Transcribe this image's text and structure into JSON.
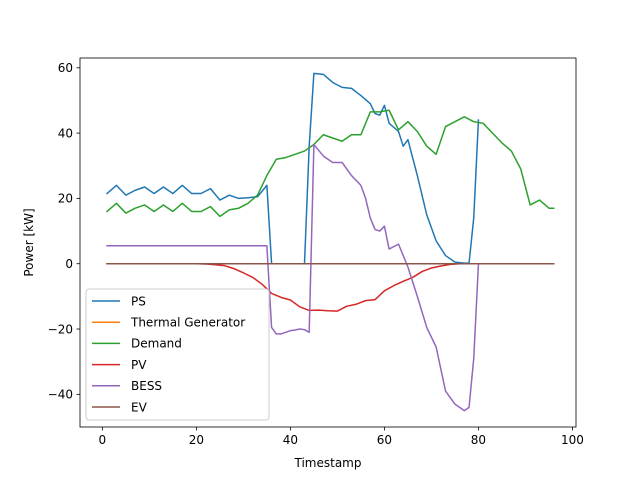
{
  "chart_data": {
    "type": "line",
    "title": "",
    "xlabel": "Timestamp",
    "ylabel": "Power [kW]",
    "xlim": [
      -4.75,
      100.75
    ],
    "ylim": [
      -50,
      63
    ],
    "xticks": [
      0,
      20,
      40,
      60,
      80,
      100
    ],
    "yticks": [
      -40,
      -20,
      0,
      20,
      40,
      60
    ],
    "grid": false,
    "legend_position": "lower-left",
    "series": [
      {
        "name": "PS",
        "color": "#1f77b4",
        "x": [
          1,
          3,
          5,
          7,
          9,
          11,
          13,
          15,
          17,
          19,
          21,
          23,
          25,
          27,
          29,
          31,
          33,
          35,
          36,
          43,
          44,
          45,
          47,
          49,
          51,
          53,
          55,
          57,
          58,
          59,
          60,
          61,
          63,
          64,
          65,
          67,
          69,
          71,
          73,
          75,
          77,
          78,
          79,
          80
        ],
        "y": [
          21.5,
          24,
          21,
          22.5,
          23.5,
          21.5,
          23.5,
          21.5,
          24,
          21.5,
          21.5,
          23,
          19.5,
          21,
          20,
          20.2,
          20.5,
          24,
          0,
          0,
          36,
          58.3,
          58,
          55.5,
          54,
          53.7,
          51.5,
          49,
          46,
          45.5,
          48.5,
          43,
          40.5,
          36,
          38,
          27,
          15,
          7,
          2.5,
          0.5,
          0.2,
          0.2,
          14,
          44
        ]
      },
      {
        "name": "Thermal Generator",
        "color": "#ff7f0e",
        "x": [
          1,
          96
        ],
        "y": [
          0,
          0
        ]
      },
      {
        "name": "Demand",
        "color": "#2ca02c",
        "x": [
          1,
          3,
          5,
          7,
          9,
          11,
          13,
          15,
          17,
          19,
          21,
          23,
          25,
          27,
          29,
          31,
          33,
          35,
          37,
          39,
          41,
          43,
          45,
          47,
          49,
          51,
          53,
          55,
          57,
          59,
          61,
          63,
          65,
          67,
          69,
          71,
          73,
          75,
          77,
          79,
          81,
          83,
          85,
          87,
          89,
          91,
          93,
          95,
          96
        ],
        "y": [
          16,
          18.5,
          15.5,
          17,
          18,
          16,
          18,
          16,
          18.5,
          16,
          16,
          17.5,
          14.5,
          16.5,
          17,
          18.5,
          21,
          27,
          32,
          32.5,
          33.5,
          34.5,
          36.5,
          39.5,
          38.5,
          37.5,
          39.5,
          39.5,
          46.5,
          46.5,
          47,
          41,
          43.5,
          40.5,
          36,
          33.5,
          42,
          43.5,
          45,
          43.5,
          43,
          40,
          37,
          34.5,
          29,
          18,
          19.5,
          17,
          17
        ]
      },
      {
        "name": "PV",
        "color": "#d62728",
        "x": [
          1,
          20,
          22,
          24,
          26,
          28,
          30,
          32,
          34,
          36,
          38,
          40,
          42,
          44,
          46,
          48,
          50,
          52,
          54,
          56,
          58,
          60,
          62,
          64,
          66,
          68,
          70,
          72,
          74,
          76,
          78,
          80,
          96
        ],
        "y": [
          0,
          0,
          -0.1,
          -0.3,
          -0.6,
          -1.5,
          -2.8,
          -4.2,
          -6.3,
          -9.1,
          -10.3,
          -11.1,
          -13.2,
          -14.3,
          -14.2,
          -14.4,
          -14.5,
          -13,
          -12.4,
          -11.3,
          -11,
          -8.3,
          -6.7,
          -5.4,
          -4.2,
          -2.4,
          -1.3,
          -0.7,
          -0.2,
          0,
          0,
          0,
          0
        ]
      },
      {
        "name": "BESS",
        "color": "#9467bd",
        "x": [
          1,
          35,
          36,
          37,
          38,
          39,
          40,
          41,
          42,
          43,
          44,
          45,
          47,
          49,
          51,
          53,
          55,
          56,
          57,
          58,
          59,
          60,
          61,
          63,
          65,
          67,
          69,
          71,
          73,
          75,
          77,
          78,
          79,
          80
        ],
        "y": [
          5.5,
          5.5,
          -19.5,
          -21.5,
          -21.5,
          -21,
          -20.5,
          -20.3,
          -20,
          -20.2,
          -21,
          36.5,
          33,
          31,
          31,
          27,
          24,
          20,
          14,
          10.5,
          10,
          11.5,
          4.5,
          6,
          -1,
          -10,
          -19.5,
          -25.5,
          -39,
          -43,
          -45,
          -44,
          -29,
          0
        ]
      },
      {
        "name": "EV",
        "color": "#8c564b",
        "x": [
          1,
          96
        ],
        "y": [
          0,
          0
        ]
      }
    ]
  }
}
